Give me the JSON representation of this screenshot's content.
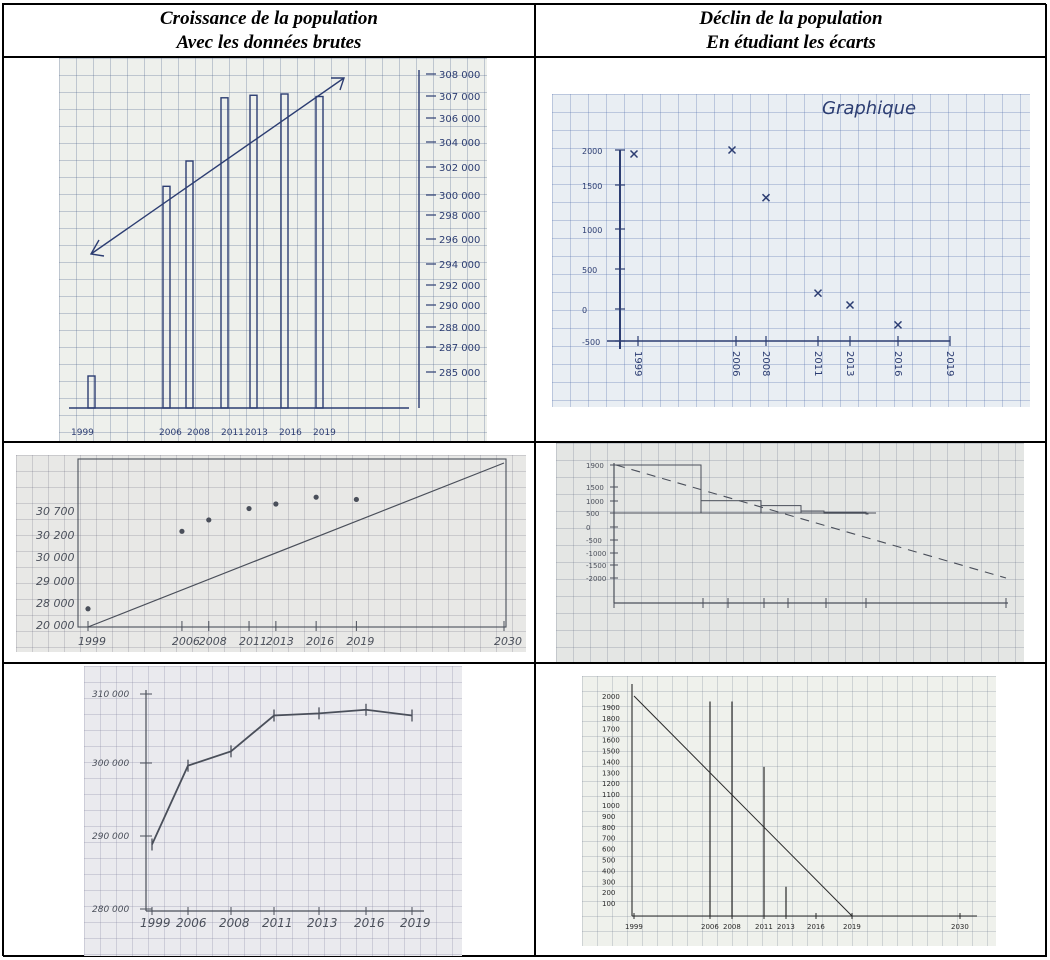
{
  "headers": {
    "left": {
      "line1": "Croissance de la population",
      "line2": "Avec les données brutes"
    },
    "right": {
      "line1": "Déclin de la population",
      "line2": "En étudiant les écarts"
    }
  },
  "colors": {
    "pencil": "#4a4f5a",
    "blue_ink": "#2c3d72",
    "border": "#000000"
  },
  "chart_data": [
    {
      "type": "bar",
      "categories": [
        "1999",
        "2006",
        "2008",
        "2011",
        "2013",
        "2016",
        "2019"
      ],
      "y_ticks": [
        "308 000",
        "307 000",
        "306 000",
        "304 000",
        "302 000",
        "300 000",
        "298 000",
        "296 000",
        "294 000",
        "292 000",
        "290 000",
        "288 000",
        "287 000",
        "285 000"
      ],
      "values": [
        285000,
        300000,
        302000,
        307000,
        307200,
        307300,
        307100
      ]
    },
    {
      "type": "scatter",
      "title": "Graphique",
      "x_ticks": [
        "1999",
        "2006",
        "2008",
        "2011",
        "2013",
        "2016",
        "2019"
      ],
      "y_ticks": [
        "2000",
        "1500",
        "1000",
        "500",
        "0",
        "-500"
      ],
      "points": [
        {
          "x": "1999",
          "y": 1950
        },
        {
          "x": "2006",
          "y": 2000
        },
        {
          "x": "2008",
          "y": 1400
        },
        {
          "x": "2011",
          "y": 200
        },
        {
          "x": "2013",
          "y": 50
        },
        {
          "x": "2016",
          "y": -200
        }
      ]
    },
    {
      "type": "scatter",
      "x_ticks": [
        "1999",
        "2006",
        "2008",
        "2011",
        "2013",
        "2016",
        "2019",
        "2030"
      ],
      "y_ticks": [
        "30 700",
        "30 200",
        "30 000",
        "29 000",
        "28 000",
        "20 000"
      ],
      "points": [
        {
          "x": 1999,
          "y": 28200
        },
        {
          "x": 2006,
          "y": 29900
        },
        {
          "x": 2008,
          "y": 30150
        },
        {
          "x": 2011,
          "y": 30400
        },
        {
          "x": 2013,
          "y": 30500
        },
        {
          "x": 2016,
          "y": 30650
        },
        {
          "x": 2019,
          "y": 30600
        }
      ],
      "trend": {
        "from": {
          "x": 1999,
          "y": 27800
        },
        "to": {
          "x": 2030,
          "y": 31400
        }
      }
    },
    {
      "type": "bar",
      "y_ticks": [
        "1900",
        "1500",
        "1000",
        "500",
        "0",
        "-500",
        "-1000",
        "-1500",
        "-2000"
      ],
      "values": [
        1950,
        500,
        300,
        80,
        30,
        -20
      ],
      "trend": "decreasing"
    },
    {
      "type": "line",
      "x_ticks": [
        "1999",
        "2006",
        "2008",
        "2011",
        "2013",
        "2016",
        "2019"
      ],
      "y_ticks": [
        "310 000",
        "300 000",
        "290 000",
        "280 000"
      ],
      "points": [
        {
          "x": 1999,
          "y": 289000
        },
        {
          "x": 2006,
          "y": 300000
        },
        {
          "x": 2008,
          "y": 302000
        },
        {
          "x": 2011,
          "y": 307000
        },
        {
          "x": 2013,
          "y": 307300
        },
        {
          "x": 2016,
          "y": 307800
        },
        {
          "x": 2019,
          "y": 307000
        }
      ]
    },
    {
      "type": "bar",
      "x_ticks": [
        "1999",
        "2006",
        "2008",
        "2011",
        "2013",
        "2016",
        "2019",
        "2030"
      ],
      "y_ticks": [
        "2000",
        "1900",
        "1800",
        "1700",
        "1600",
        "1500",
        "1400",
        "1300",
        "1200",
        "1100",
        "1000",
        "900",
        "800",
        "700",
        "600",
        "500",
        "400",
        "300",
        "200",
        "100"
      ],
      "values": [
        1950,
        1950,
        1350,
        250
      ],
      "trend": {
        "from": {
          "x": 1999,
          "y": 2000
        },
        "to": {
          "x": 2019,
          "y": 0
        }
      }
    }
  ]
}
